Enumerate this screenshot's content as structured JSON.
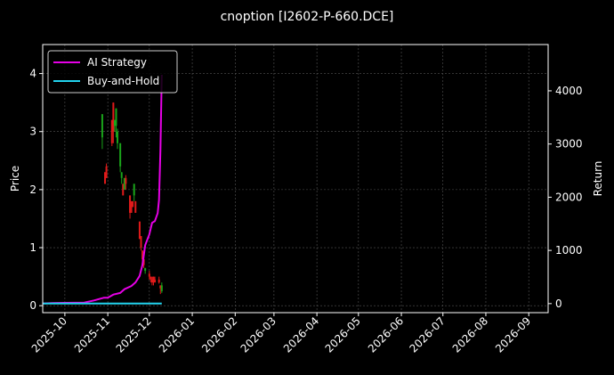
{
  "chart_data": {
    "type": "candlestick-with-lines",
    "title": "cnoption [I2602-P-660.DCE]",
    "ylabel_left": "Price",
    "ylabel_right": "Return",
    "grid": true,
    "legend_position": "top-left",
    "ylim_left": [
      -0.12,
      4.5
    ],
    "ylim_right": [
      -170,
      4870
    ],
    "xlim": [
      "2025-09-15",
      "2026-09-15"
    ],
    "x_ticks": [
      "2025-10",
      "2025-11",
      "2025-12",
      "2026-01",
      "2026-02",
      "2026-03",
      "2026-04",
      "2026-05",
      "2026-06",
      "2026-07",
      "2026-08",
      "2026-09"
    ],
    "y_ticks_left": [
      0,
      1,
      2,
      3,
      4
    ],
    "y_ticks_right": [
      0,
      1000,
      2000,
      3000,
      4000
    ],
    "series": [
      {
        "name": "AI Strategy",
        "color": "#e600e6",
        "axis": "right",
        "points": [
          [
            "2025-09-15",
            0
          ],
          [
            "2025-09-22",
            10
          ],
          [
            "2025-10-01",
            15
          ],
          [
            "2025-10-15",
            20
          ],
          [
            "2025-10-22",
            60
          ],
          [
            "2025-10-29",
            110
          ],
          [
            "2025-11-01",
            110
          ],
          [
            "2025-11-05",
            170
          ],
          [
            "2025-11-10",
            200
          ],
          [
            "2025-11-13",
            270
          ],
          [
            "2025-11-18",
            330
          ],
          [
            "2025-11-21",
            400
          ],
          [
            "2025-11-24",
            520
          ],
          [
            "2025-11-26",
            720
          ],
          [
            "2025-11-28",
            1100
          ],
          [
            "2025-12-01",
            1300
          ],
          [
            "2025-12-03",
            1520
          ],
          [
            "2025-12-05",
            1550
          ],
          [
            "2025-12-07",
            1700
          ],
          [
            "2025-12-08",
            1950
          ],
          [
            "2025-12-09",
            2900
          ],
          [
            "2025-12-10",
            4300
          ]
        ]
      },
      {
        "name": "Buy-and-Hold",
        "color": "#22d3ee",
        "axis": "right",
        "points": [
          [
            "2025-09-15",
            0
          ],
          [
            "2025-10-15",
            0
          ],
          [
            "2025-11-15",
            0
          ],
          [
            "2025-12-10",
            0
          ]
        ]
      }
    ],
    "candles": [
      {
        "date": "2025-10-28",
        "open": 2.9,
        "close": 3.3,
        "high": 3.3,
        "low": 2.7
      },
      {
        "date": "2025-10-30",
        "open": 2.3,
        "close": 2.1,
        "high": 2.3,
        "low": 2.1
      },
      {
        "date": "2025-10-31",
        "open": 2.4,
        "close": 2.2,
        "high": 2.45,
        "low": 2.2
      },
      {
        "date": "2025-11-04",
        "open": 3.2,
        "close": 2.8,
        "high": 3.2,
        "low": 2.75
      },
      {
        "date": "2025-11-05",
        "open": 3.5,
        "close": 3.0,
        "high": 3.5,
        "low": 2.8
      },
      {
        "date": "2025-11-06",
        "open": 3.1,
        "close": 3.2,
        "high": 3.2,
        "low": 3.0
      },
      {
        "date": "2025-11-07",
        "open": 3.1,
        "close": 3.4,
        "high": 3.4,
        "low": 2.9
      },
      {
        "date": "2025-11-08",
        "open": 2.8,
        "close": 3.0,
        "high": 3.05,
        "low": 2.7
      },
      {
        "date": "2025-11-10",
        "open": 2.4,
        "close": 2.8,
        "high": 2.8,
        "low": 2.3
      },
      {
        "date": "2025-11-11",
        "open": 2.2,
        "close": 2.3,
        "high": 2.3,
        "low": 2.1
      },
      {
        "date": "2025-11-12",
        "open": 2.1,
        "close": 1.9,
        "high": 2.1,
        "low": 1.9
      },
      {
        "date": "2025-11-13",
        "open": 2.0,
        "close": 2.2,
        "high": 2.2,
        "low": 2.0
      },
      {
        "date": "2025-11-14",
        "open": 2.2,
        "close": 2.1,
        "high": 2.25,
        "low": 2.0
      },
      {
        "date": "2025-11-17",
        "open": 1.9,
        "close": 1.6,
        "high": 1.9,
        "low": 1.5
      },
      {
        "date": "2025-11-18",
        "open": 1.8,
        "close": 1.6,
        "high": 1.8,
        "low": 1.6
      },
      {
        "date": "2025-11-19",
        "open": 1.8,
        "close": 1.7,
        "high": 1.8,
        "low": 1.7
      },
      {
        "date": "2025-11-20",
        "open": 1.9,
        "close": 2.1,
        "high": 2.1,
        "low": 1.8
      },
      {
        "date": "2025-11-21",
        "open": 1.8,
        "close": 1.6,
        "high": 1.8,
        "low": 1.6
      },
      {
        "date": "2025-11-24",
        "open": 1.45,
        "close": 1.15,
        "high": 1.45,
        "low": 1.15
      },
      {
        "date": "2025-11-25",
        "open": 1.2,
        "close": 1.0,
        "high": 1.2,
        "low": 0.95
      },
      {
        "date": "2025-11-26",
        "open": 0.95,
        "close": 0.8,
        "high": 0.95,
        "low": 0.75
      },
      {
        "date": "2025-11-27",
        "open": 0.8,
        "close": 0.7,
        "high": 0.85,
        "low": 0.65
      },
      {
        "date": "2025-11-28",
        "open": 0.6,
        "close": 0.65,
        "high": 0.65,
        "low": 0.55
      },
      {
        "date": "2025-12-01",
        "open": 0.55,
        "close": 0.5,
        "high": 0.6,
        "low": 0.45
      },
      {
        "date": "2025-12-02",
        "open": 0.5,
        "close": 0.45,
        "high": 0.5,
        "low": 0.4
      },
      {
        "date": "2025-12-03",
        "open": 0.45,
        "close": 0.4,
        "high": 0.5,
        "low": 0.35
      },
      {
        "date": "2025-12-04",
        "open": 0.5,
        "close": 0.4,
        "high": 0.5,
        "low": 0.35
      },
      {
        "date": "2025-12-05",
        "open": 0.45,
        "close": 0.4,
        "high": 0.5,
        "low": 0.4
      },
      {
        "date": "2025-12-08",
        "open": 0.45,
        "close": 0.4,
        "high": 0.5,
        "low": 0.38
      },
      {
        "date": "2025-12-09",
        "open": 0.35,
        "close": 0.3,
        "high": 0.35,
        "low": 0.2
      },
      {
        "date": "2025-12-10",
        "open": 0.25,
        "close": 0.35,
        "high": 0.4,
        "low": 0.22
      }
    ],
    "colors": {
      "up": "#1aa51a",
      "down": "#e01a1a",
      "grid": "#555555",
      "axis": "#ffffff"
    }
  }
}
